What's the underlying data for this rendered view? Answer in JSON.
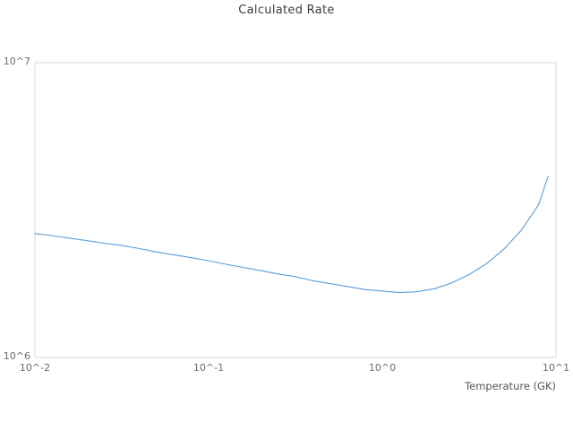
{
  "title": "Calculated Rate",
  "colors": {
    "line": "#5b9ed9",
    "spine": "#d9d9d9",
    "title_text": "#3c3c3c",
    "tick_text": "#6a6a6a",
    "background": "#ffffff"
  },
  "chart_data": {
    "type": "line",
    "title": "Calculated Rate",
    "xlabel": "Temperature (GK)",
    "ylabel": "",
    "x_scale": "log",
    "y_scale": "log",
    "xlim": [
      0.01,
      10
    ],
    "ylim": [
      1000000,
      10000000
    ],
    "grid": false,
    "legend_position": "none",
    "x_tick_labels": [
      "10^-2",
      "10^-1",
      "10^0",
      "10^1"
    ],
    "x_tick_values": [
      0.01,
      0.1,
      1,
      10
    ],
    "y_tick_labels": [
      "10^6",
      "10^7"
    ],
    "y_tick_values": [
      1000000,
      10000000
    ],
    "series": [
      {
        "name": "calculated-rate",
        "x": [
          0.01,
          0.0126,
          0.0158,
          0.02,
          0.025,
          0.0316,
          0.04,
          0.05,
          0.063,
          0.079,
          0.1,
          0.126,
          0.158,
          0.2,
          0.251,
          0.316,
          0.398,
          0.501,
          0.631,
          0.794,
          1.0,
          1.26,
          1.58,
          2.0,
          2.51,
          3.16,
          3.98,
          5.01,
          6.31,
          7.94,
          9.0
        ],
        "y": [
          2630000,
          2590000,
          2540000,
          2490000,
          2440000,
          2400000,
          2340000,
          2280000,
          2230000,
          2180000,
          2130000,
          2070000,
          2020000,
          1970000,
          1920000,
          1880000,
          1820000,
          1780000,
          1740000,
          1700000,
          1680000,
          1660000,
          1670000,
          1710000,
          1790000,
          1910000,
          2080000,
          2330000,
          2700000,
          3300000,
          4110000
        ]
      }
    ]
  },
  "layout_note": "single line chart, log-log axes, no grid, light gray plot box"
}
